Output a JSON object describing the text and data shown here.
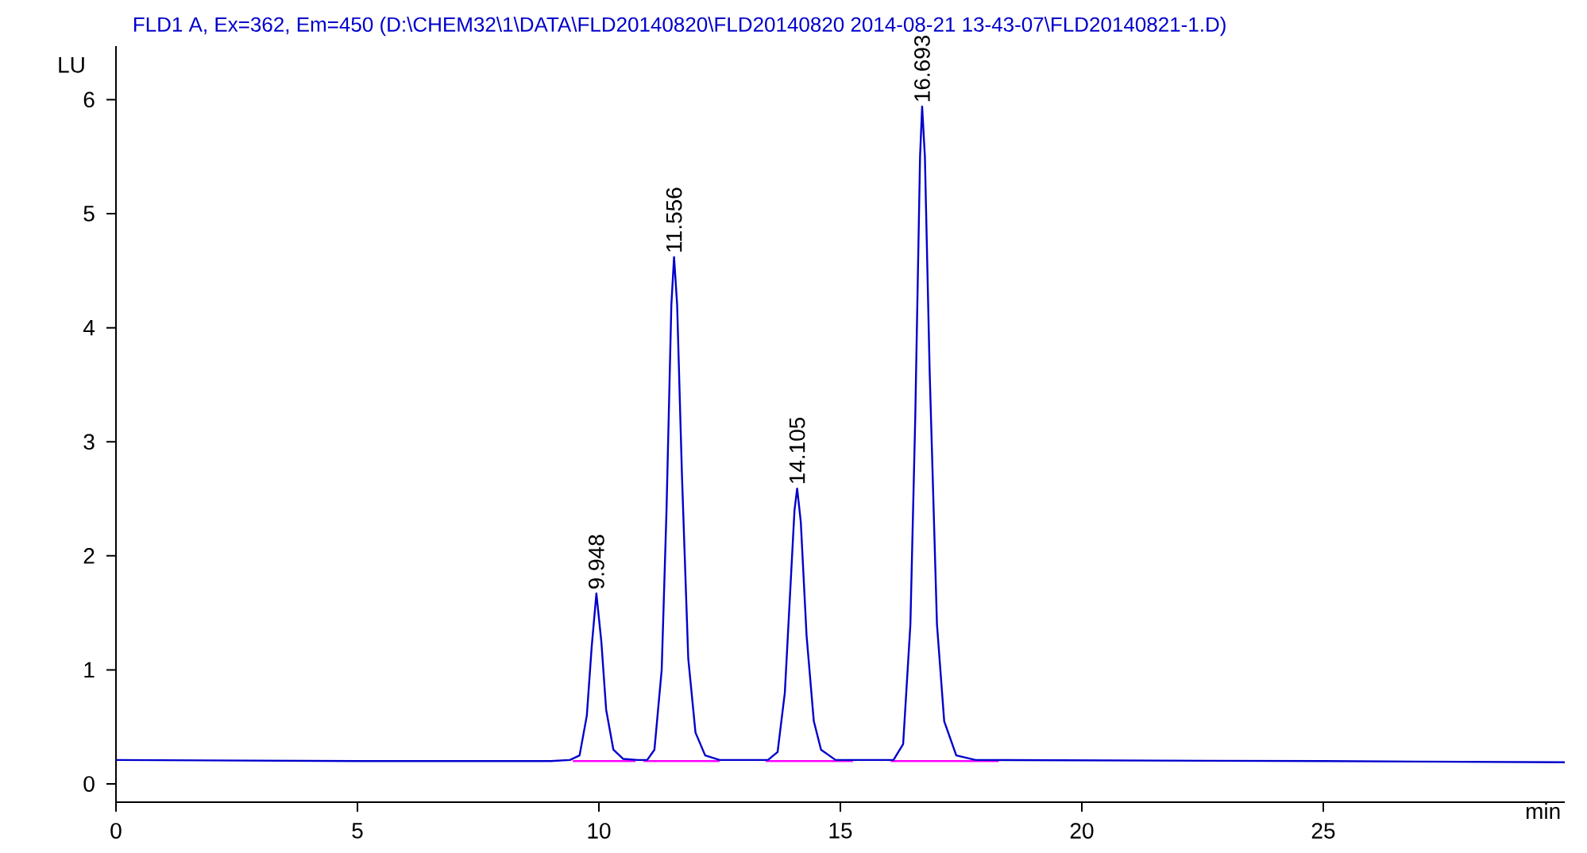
{
  "chart_data": {
    "type": "line",
    "title": "FLD1 A, Ex=362, Em=450 (D:\\CHEM32\\1\\DATA\\FLD20140820\\FLD20140820 2014-08-21 13-43-07\\FLD20140821-1.D)",
    "xlabel": "min",
    "ylabel": "LU",
    "xlim": [
      0,
      30
    ],
    "ylim": [
      -0.16,
      6.47
    ],
    "xticks": [
      0,
      5,
      10,
      15,
      20,
      25
    ],
    "yticks": [
      0,
      1,
      2,
      3,
      4,
      5,
      6
    ],
    "series": [
      {
        "color": "#ff00ff",
        "x": [
          9.46,
          10.76,
          10.77,
          10.92,
          12.5,
          12.51,
          13.45,
          15.26,
          15.27,
          16.04,
          18.28
        ],
        "values": [
          0.2,
          0.2,
          null,
          0.2,
          0.2,
          null,
          0.2,
          0.2,
          null,
          0.2,
          0.2
        ]
      },
      {
        "color": "#0000cc",
        "x": [
          0,
          5,
          9,
          9.4,
          9.6,
          9.75,
          9.85,
          9.948,
          10.05,
          10.15,
          10.3,
          10.5,
          10.8,
          11.0,
          11.15,
          11.3,
          11.4,
          11.5,
          11.556,
          11.62,
          11.72,
          11.85,
          12.0,
          12.2,
          12.5,
          13.5,
          13.7,
          13.85,
          13.95,
          14.05,
          14.105,
          14.18,
          14.3,
          14.45,
          14.6,
          14.9,
          16.1,
          16.3,
          16.45,
          16.55,
          16.65,
          16.693,
          16.75,
          16.85,
          17.0,
          17.15,
          17.4,
          17.8,
          25,
          30
        ],
        "values": [
          0.21,
          0.2,
          0.2,
          0.21,
          0.25,
          0.6,
          1.2,
          1.67,
          1.25,
          0.65,
          0.3,
          0.22,
          0.21,
          0.21,
          0.3,
          1.0,
          2.4,
          4.2,
          4.62,
          4.2,
          2.7,
          1.1,
          0.45,
          0.25,
          0.21,
          0.21,
          0.28,
          0.8,
          1.6,
          2.4,
          2.59,
          2.3,
          1.3,
          0.55,
          0.3,
          0.21,
          0.21,
          0.35,
          1.4,
          3.2,
          5.5,
          5.94,
          5.5,
          3.6,
          1.4,
          0.55,
          0.25,
          0.21,
          0.2,
          0.19
        ]
      }
    ],
    "annotations": [
      {
        "text": "9.948",
        "x": 9.948,
        "y": 1.67
      },
      {
        "text": "11.556",
        "x": 11.556,
        "y": 4.62
      },
      {
        "text": "14.105",
        "x": 14.105,
        "y": 2.59
      },
      {
        "text": "16.693",
        "x": 16.693,
        "y": 5.94
      }
    ]
  }
}
